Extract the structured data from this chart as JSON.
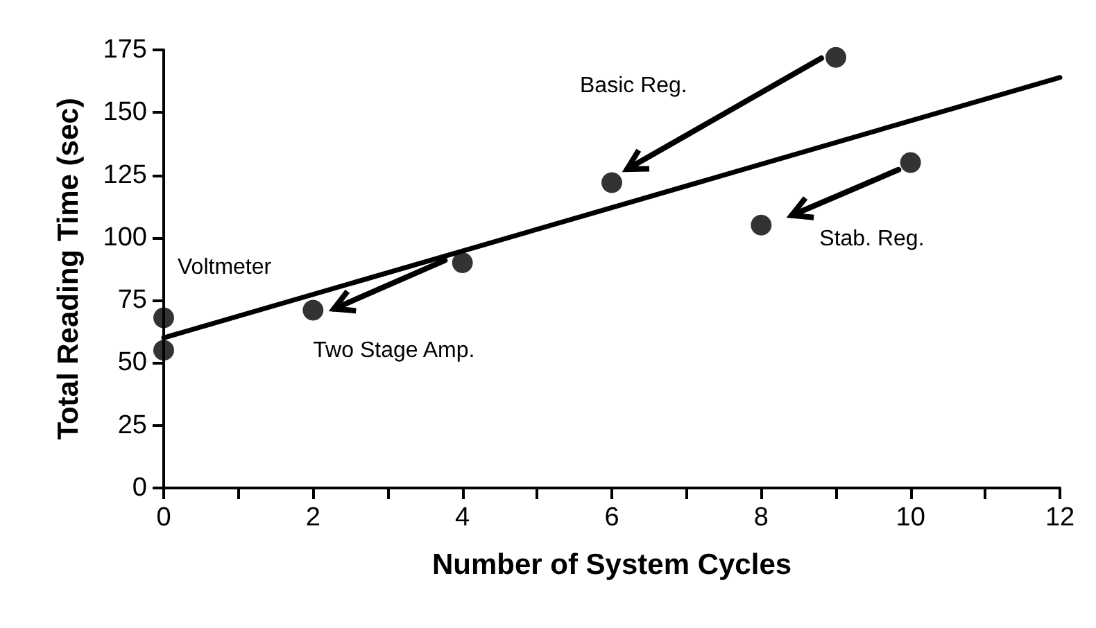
{
  "chart_data": {
    "type": "scatter",
    "xlabel": "Number of System Cycles",
    "ylabel": "Total Reading Time (sec)",
    "series": [
      {
        "color": "#000000",
        "x": [
          0,
          0,
          2,
          4,
          6,
          8,
          9,
          10
        ],
        "values": [
          68,
          55,
          71,
          90,
          122,
          105,
          172,
          130
        ]
      },
      {
        "type": "line",
        "color": "#000000",
        "marker": "none",
        "x": [
          0,
          12
        ],
        "values": [
          60,
          164
        ]
      }
    ],
    "marker": "circle",
    "line_style": "solid",
    "grid": false,
    "xlim": [
      0,
      12
    ],
    "xticks": [
      0,
      {
        "value": 1,
        "label": null
      },
      2,
      {
        "value": 3,
        "label": null
      },
      4,
      {
        "value": 5,
        "label": null
      },
      6,
      {
        "value": 7,
        "label": null
      },
      8,
      {
        "value": 9,
        "label": null
      },
      10,
      {
        "value": 11,
        "label": null
      },
      12
    ],
    "ylim": [
      0,
      175
    ],
    "yticks": [
      0,
      25,
      50,
      75,
      100,
      125,
      150,
      175
    ],
    "annotations": [
      {
        "text": "Voltmeter",
        "x": 0,
        "y": 68
      },
      {
        "text": "Two Stage Amp.",
        "x": 2,
        "y": 71
      },
      "Basic Reg.",
      {
        "text": "Stab. Reg.",
        "x": 8,
        "y": 105
      }
    ]
  }
}
